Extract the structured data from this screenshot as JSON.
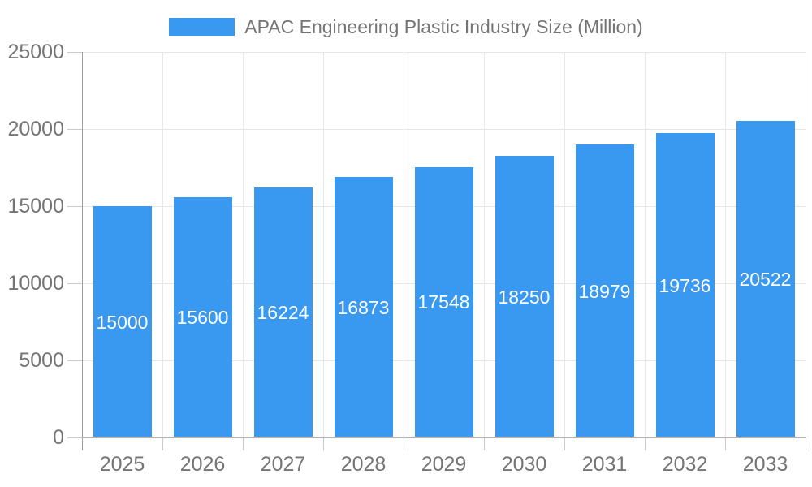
{
  "chart_data": {
    "type": "bar",
    "title": "APAC Engineering Plastic Industry Size (Million)",
    "series_name": "APAC Engineering Plastic Industry Size (Million)",
    "categories": [
      "2025",
      "2026",
      "2027",
      "2028",
      "2029",
      "2030",
      "2031",
      "2032",
      "2033"
    ],
    "values": [
      15000,
      15600,
      16224,
      16873,
      17548,
      18250,
      18979,
      19736,
      20522
    ],
    "bar_value_labels": [
      "15000",
      "15600",
      "16224",
      "16873",
      "17548",
      "18250",
      "18979",
      "19736",
      "20522"
    ],
    "xlabel": "",
    "ylabel": "",
    "ylim": [
      0,
      25000
    ],
    "yticks": [
      0,
      5000,
      10000,
      15000,
      20000,
      25000
    ],
    "ytick_labels": [
      "0",
      "5000",
      "10000",
      "15000",
      "20000",
      "25000"
    ],
    "grid": true,
    "legend_position": "top"
  },
  "colors": {
    "bar": "#3999F0",
    "axis_text": "#757575",
    "bar_label_text": "#ffffff",
    "gridline": "#e7e7e7",
    "axis_line": "#9e9e9e",
    "baseline": "#b2b2b2",
    "tick": "#cacaca",
    "background": "#ffffff"
  }
}
